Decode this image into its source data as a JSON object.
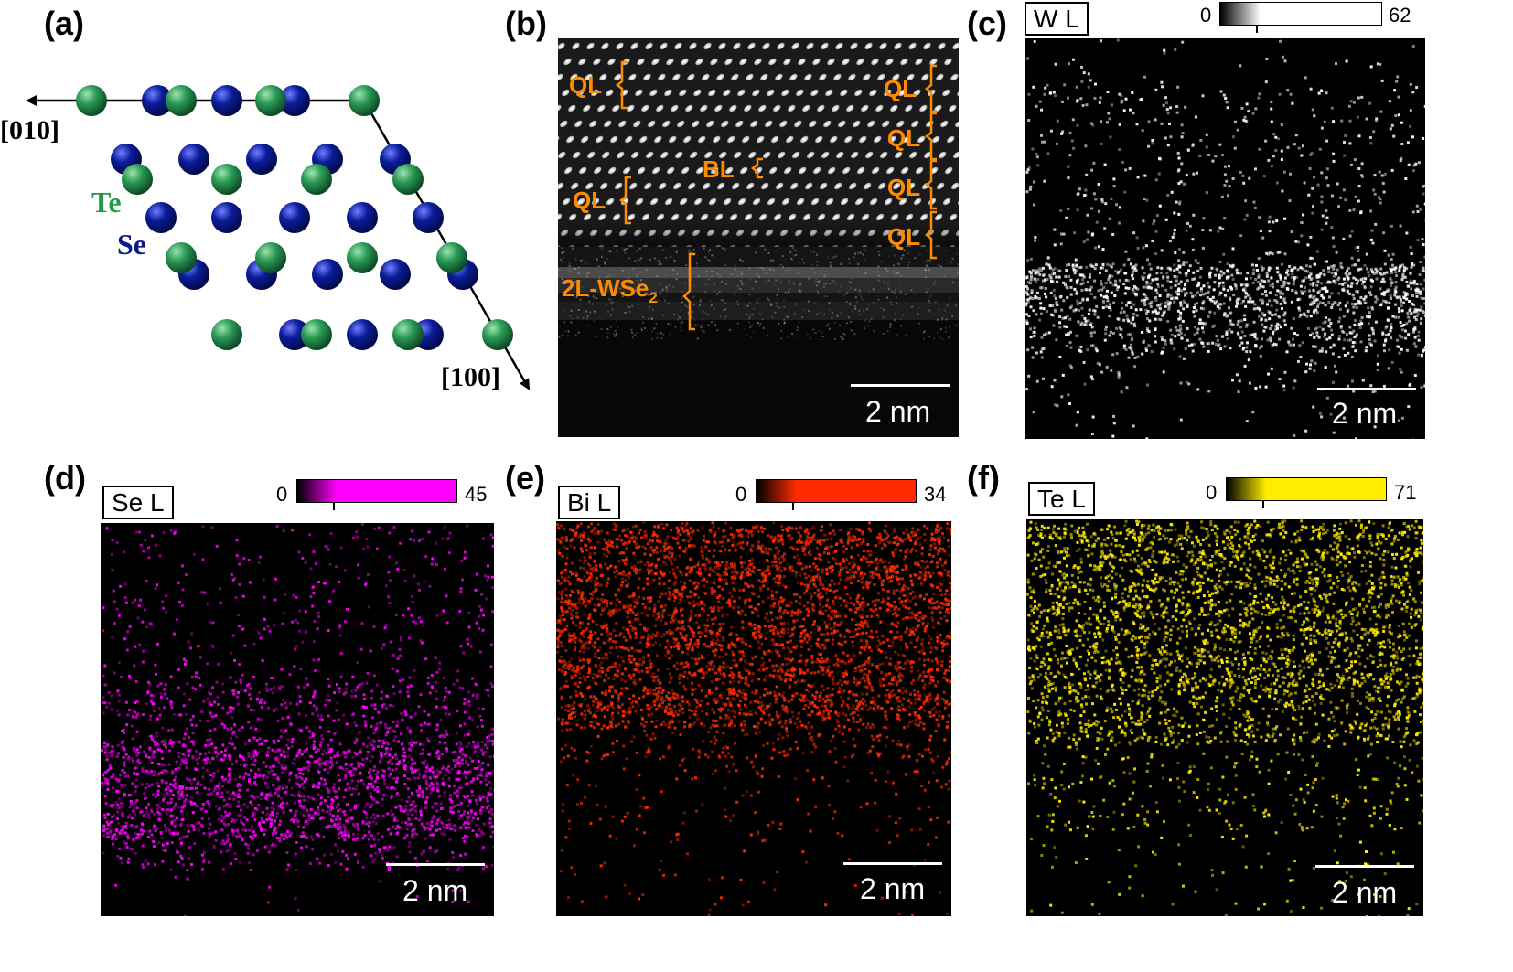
{
  "panels": {
    "a": {
      "label": "(a)",
      "dir1": "[010]",
      "dir2": "[100]",
      "te": "Te",
      "se": "Se"
    },
    "b": {
      "label": "(b)",
      "layers": [
        "QL",
        "QL",
        "BL",
        "QL",
        "QL",
        "QL",
        "QL"
      ],
      "wse2": "2L-WSe",
      "wse2_sub": "2",
      "scale": "2 nm"
    },
    "c": {
      "label": "(c)",
      "element": "W L",
      "cb_min": "0",
      "cb_max": "62",
      "scale": "2 nm",
      "color": "#ffffff"
    },
    "d": {
      "label": "(d)",
      "element": "Se L",
      "cb_min": "0",
      "cb_max": "45",
      "scale": "2 nm",
      "color": "#ff00ff"
    },
    "e": {
      "label": "(e)",
      "element": "Bi L",
      "cb_min": "0",
      "cb_max": "34",
      "scale": "2 nm",
      "color": "#ff2a00"
    },
    "f": {
      "label": "(f)",
      "element": "Te L",
      "cb_min": "0",
      "cb_max": "71",
      "scale": "2 nm",
      "color": "#ffee00"
    }
  },
  "colors": {
    "te": "#1f8f4a",
    "se": "#0a1a8c",
    "annotation": "#ff8c00"
  }
}
